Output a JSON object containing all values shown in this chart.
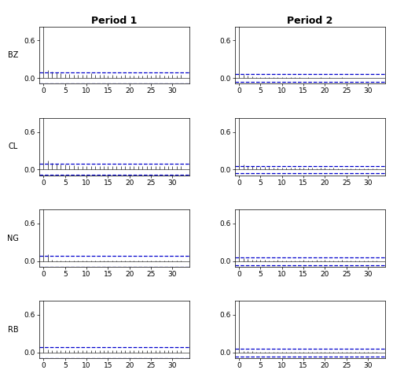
{
  "title_left": "Period 1",
  "title_right": "Period 2",
  "series_labels": [
    "BZ",
    "CL",
    "NG",
    "RB"
  ],
  "n_lags": 33,
  "ylim": [
    -0.09,
    0.82
  ],
  "yticks": [
    0.0,
    0.6
  ],
  "xticks": [
    0,
    5,
    10,
    15,
    20,
    25,
    30
  ],
  "xlim": [
    -1,
    34
  ],
  "bar_color": "#555555",
  "ci_color": "#0000cc",
  "background": "#ffffff",
  "title_fontsize": 9,
  "label_fontsize": 7,
  "tick_fontsize": 6.5,
  "acf_BZ_p1": [
    1.0,
    0.13,
    0.1,
    0.09,
    0.08,
    0.07,
    0.07,
    0.06,
    0.06,
    0.06,
    0.06,
    0.08,
    0.06,
    0.05,
    0.05,
    0.04,
    0.05,
    0.04,
    0.04,
    0.05,
    0.04,
    0.04,
    0.04,
    0.04,
    0.06,
    0.04,
    0.05,
    0.06,
    0.04,
    0.04,
    0.06,
    0.04,
    0.05
  ],
  "acf_BZ_p2": [
    1.0,
    0.05,
    0.04,
    0.03,
    0.02,
    0.02,
    0.02,
    0.02,
    0.02,
    0.02,
    0.02,
    0.02,
    0.02,
    0.02,
    0.02,
    0.01,
    0.02,
    0.01,
    0.01,
    0.02,
    0.01,
    0.02,
    0.01,
    0.01,
    0.02,
    0.01,
    0.01,
    0.01,
    0.01,
    0.01,
    0.01,
    0.01,
    0.01
  ],
  "acf_CL_p1": [
    1.0,
    0.14,
    0.1,
    0.09,
    0.08,
    0.08,
    0.07,
    0.07,
    0.06,
    0.06,
    0.06,
    0.06,
    0.06,
    0.06,
    0.06,
    0.06,
    0.05,
    0.05,
    0.05,
    0.05,
    0.05,
    0.05,
    0.05,
    0.05,
    0.05,
    0.05,
    0.05,
    0.05,
    0.05,
    0.05,
    0.05,
    0.05,
    0.05
  ],
  "acf_CL_p2": [
    1.0,
    0.08,
    0.06,
    0.05,
    0.04,
    0.04,
    0.04,
    0.04,
    0.03,
    0.03,
    0.03,
    0.03,
    0.03,
    0.03,
    0.03,
    0.03,
    0.03,
    0.03,
    0.02,
    0.03,
    0.03,
    0.02,
    0.03,
    0.02,
    0.02,
    0.02,
    0.02,
    0.02,
    0.02,
    0.02,
    0.02,
    0.02,
    0.02
  ],
  "acf_NG_p1": [
    1.0,
    0.11,
    0.02,
    0.01,
    0.01,
    0.01,
    0.005,
    0.005,
    0.005,
    0.005,
    0.005,
    0.005,
    0.005,
    0.005,
    0.005,
    0.005,
    0.005,
    0.005,
    0.005,
    0.005,
    0.005,
    0.005,
    0.005,
    0.005,
    0.005,
    0.005,
    0.005,
    0.005,
    0.005,
    0.005,
    0.005,
    0.005,
    0.005
  ],
  "acf_NG_p2": [
    1.0,
    0.04,
    0.03,
    0.02,
    0.02,
    0.02,
    0.02,
    0.01,
    0.01,
    0.02,
    0.01,
    0.01,
    0.01,
    0.01,
    0.01,
    0.02,
    0.01,
    0.01,
    0.02,
    0.01,
    0.02,
    0.01,
    0.01,
    0.01,
    0.02,
    0.01,
    0.01,
    0.01,
    0.01,
    0.01,
    0.01,
    0.01,
    0.01
  ],
  "acf_RB_p1": [
    1.0,
    0.05,
    0.04,
    0.04,
    0.04,
    0.03,
    0.03,
    0.03,
    0.03,
    0.03,
    0.03,
    0.03,
    0.03,
    0.03,
    0.04,
    0.03,
    0.03,
    0.03,
    0.03,
    0.03,
    0.03,
    0.03,
    0.03,
    0.03,
    0.03,
    0.03,
    0.03,
    0.03,
    0.03,
    0.03,
    0.03,
    0.03,
    0.03
  ],
  "acf_RB_p2": [
    1.0,
    0.02,
    0.02,
    0.02,
    0.01,
    0.01,
    0.01,
    0.01,
    0.01,
    0.01,
    0.01,
    0.01,
    0.01,
    0.01,
    0.01,
    0.01,
    0.01,
    0.01,
    0.01,
    0.01,
    0.01,
    0.01,
    0.01,
    0.01,
    0.01,
    0.01,
    0.01,
    0.01,
    0.01,
    0.01,
    0.01,
    0.01,
    0.01
  ],
  "ci_p1": 0.0877,
  "ci_p2": 0.062
}
